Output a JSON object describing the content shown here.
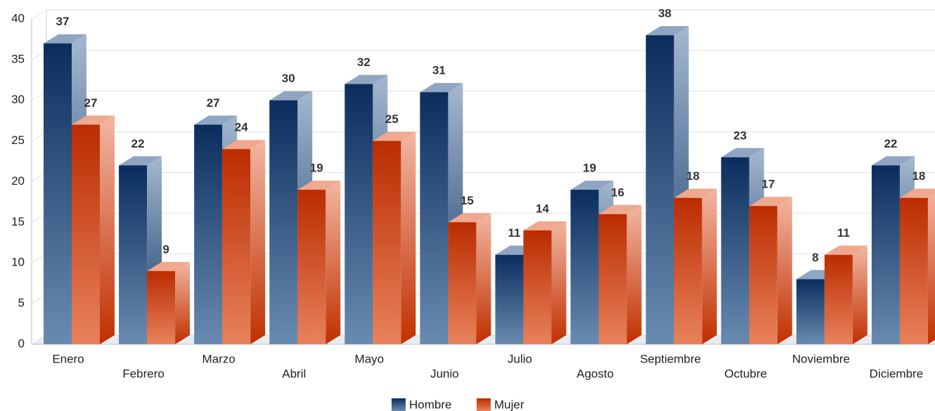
{
  "chart_data": {
    "type": "bar3d",
    "categories": [
      "Enero",
      "Febrero",
      "Marzo",
      "Abril",
      "Mayo",
      "Junio",
      "Julio",
      "Agosto",
      "Septiembre",
      "Octubre",
      "Noviembre",
      "Diciembre"
    ],
    "series": [
      {
        "name": "Hombre",
        "color": "#0a2d5e",
        "values": [
          37,
          22,
          27,
          30,
          32,
          31,
          11,
          19,
          38,
          23,
          8,
          22
        ]
      },
      {
        "name": "Mujer",
        "color": "#c03000",
        "values": [
          27,
          9,
          24,
          19,
          25,
          15,
          14,
          16,
          18,
          17,
          11,
          18
        ]
      }
    ],
    "ylim": [
      0,
      40
    ],
    "yticks": [
      0,
      5,
      10,
      15,
      20,
      25,
      30,
      35,
      40
    ],
    "grid": true,
    "legend": "bottom"
  }
}
